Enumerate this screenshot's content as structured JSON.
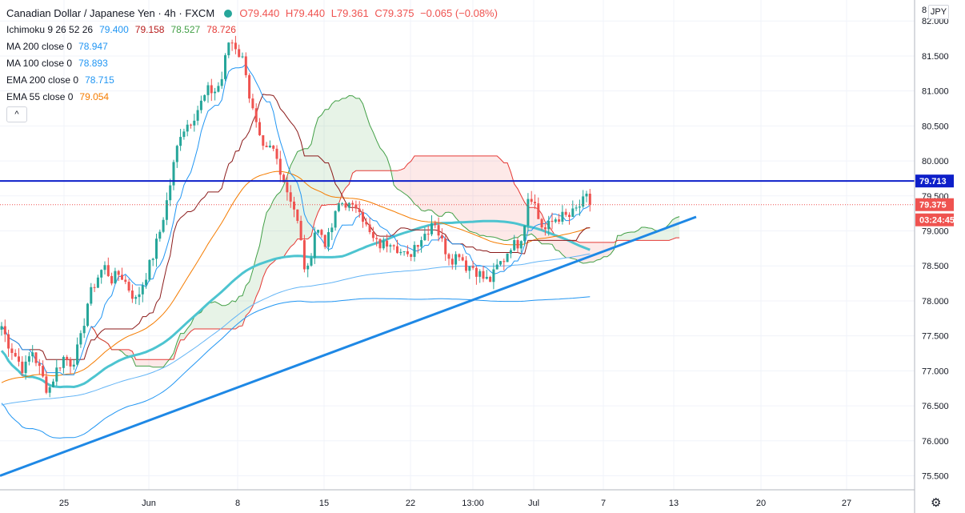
{
  "header": {
    "title": "Canadian Dollar / Japanese Yen · 4h · FXCM",
    "ohlc": {
      "o": "O79.440",
      "h": "H79.440",
      "l": "L79.361",
      "c": "C79.375",
      "chg": "−0.065 (−0.08%)"
    }
  },
  "indicators": [
    {
      "label": "Ichimoku 9 26 52 26",
      "values": [
        {
          "text": "79.400",
          "color": "#2196f3"
        },
        {
          "text": "79.158",
          "color": "#b71c1c"
        },
        {
          "text": "78.527",
          "color": "#43a047"
        },
        {
          "text": "78.726",
          "color": "#e53935"
        }
      ]
    },
    {
      "label": "MA 200 close 0",
      "values": [
        {
          "text": "78.947",
          "color": "#2196f3"
        }
      ]
    },
    {
      "label": "MA 100 close 0",
      "values": [
        {
          "text": "78.893",
          "color": "#2196f3"
        }
      ]
    },
    {
      "label": "EMA 200 close 0",
      "values": [
        {
          "text": "78.715",
          "color": "#2196f3"
        }
      ]
    },
    {
      "label": "EMA 55 close 0",
      "values": [
        {
          "text": "79.054",
          "color": "#f57c00"
        }
      ]
    }
  ],
  "controls": {
    "collapse": "^",
    "currency": "JPY"
  },
  "chart_data": {
    "type": "candlestick",
    "ylim": [
      75.3,
      82.3
    ],
    "y_ticks": [
      "75.500",
      "76.000",
      "76.500",
      "77.000",
      "77.500",
      "78.000",
      "78.500",
      "79.000",
      "79.500",
      "80.000",
      "80.500",
      "81.000",
      "81.500",
      "82.000"
    ],
    "top_tick_partial": "8",
    "x_ticks": [
      "25",
      "Jun",
      "8",
      "15",
      "22",
      "13:00",
      "Jul",
      "7",
      "13",
      "20",
      "27"
    ],
    "resistance_level": 79.713,
    "resistance_label": "79.713",
    "last_price": 79.375,
    "last_price_label": "79.375",
    "countdown": "03:24:45",
    "trendline": {
      "from": 75.5,
      "to": 79.2
    },
    "price_path": [
      [
        0,
        77.7
      ],
      [
        10,
        77.4
      ],
      [
        20,
        77.2
      ],
      [
        30,
        77.0
      ],
      [
        40,
        77.3
      ],
      [
        50,
        77.0
      ],
      [
        60,
        76.7
      ],
      [
        70,
        77.0
      ],
      [
        80,
        77.2
      ],
      [
        90,
        77.1
      ],
      [
        100,
        77.4
      ],
      [
        110,
        78.0
      ],
      [
        120,
        78.3
      ],
      [
        130,
        78.5
      ],
      [
        140,
        78.3
      ],
      [
        150,
        78.4
      ],
      [
        160,
        78.2
      ],
      [
        170,
        78.0
      ],
      [
        180,
        78.3
      ],
      [
        190,
        78.6
      ],
      [
        200,
        79.0
      ],
      [
        210,
        79.5
      ],
      [
        218,
        80.0
      ],
      [
        225,
        80.4
      ],
      [
        232,
        80.5
      ],
      [
        240,
        80.6
      ],
      [
        250,
        80.8
      ],
      [
        260,
        81.0
      ],
      [
        270,
        81.0
      ],
      [
        278,
        81.2
      ],
      [
        285,
        81.7
      ],
      [
        292,
        81.7
      ],
      [
        300,
        81.5
      ],
      [
        306,
        81.4
      ],
      [
        312,
        80.9
      ],
      [
        318,
        80.6
      ],
      [
        324,
        80.3
      ],
      [
        330,
        80.1
      ],
      [
        340,
        80.2
      ],
      [
        350,
        79.9
      ],
      [
        358,
        79.6
      ],
      [
        366,
        79.4
      ],
      [
        374,
        79.0
      ],
      [
        380,
        78.5
      ],
      [
        386,
        78.4
      ],
      [
        392,
        79.0
      ],
      [
        400,
        79.0
      ],
      [
        408,
        78.8
      ],
      [
        416,
        79.1
      ],
      [
        424,
        79.4
      ],
      [
        432,
        79.4
      ],
      [
        440,
        79.3
      ],
      [
        448,
        79.4
      ],
      [
        456,
        79.1
      ],
      [
        464,
        78.9
      ],
      [
        472,
        78.8
      ],
      [
        480,
        78.8
      ],
      [
        490,
        78.9
      ],
      [
        500,
        78.7
      ],
      [
        510,
        78.6
      ],
      [
        518,
        78.8
      ],
      [
        526,
        78.9
      ],
      [
        534,
        79.0
      ],
      [
        542,
        79.2
      ],
      [
        550,
        78.9
      ],
      [
        558,
        78.7
      ],
      [
        566,
        78.6
      ],
      [
        574,
        78.7
      ],
      [
        582,
        78.5
      ],
      [
        590,
        78.5
      ],
      [
        598,
        78.4
      ],
      [
        606,
        78.3
      ],
      [
        614,
        78.3
      ],
      [
        622,
        78.5
      ],
      [
        630,
        78.6
      ],
      [
        638,
        78.8
      ],
      [
        646,
        78.8
      ],
      [
        654,
        79.0
      ],
      [
        660,
        79.5
      ],
      [
        666,
        79.5
      ],
      [
        672,
        79.2
      ],
      [
        680,
        79.0
      ],
      [
        688,
        79.1
      ],
      [
        696,
        79.2
      ],
      [
        704,
        79.2
      ],
      [
        712,
        79.2
      ],
      [
        720,
        79.3
      ],
      [
        728,
        79.4
      ],
      [
        736,
        79.5
      ],
      [
        740,
        79.38
      ]
    ]
  }
}
